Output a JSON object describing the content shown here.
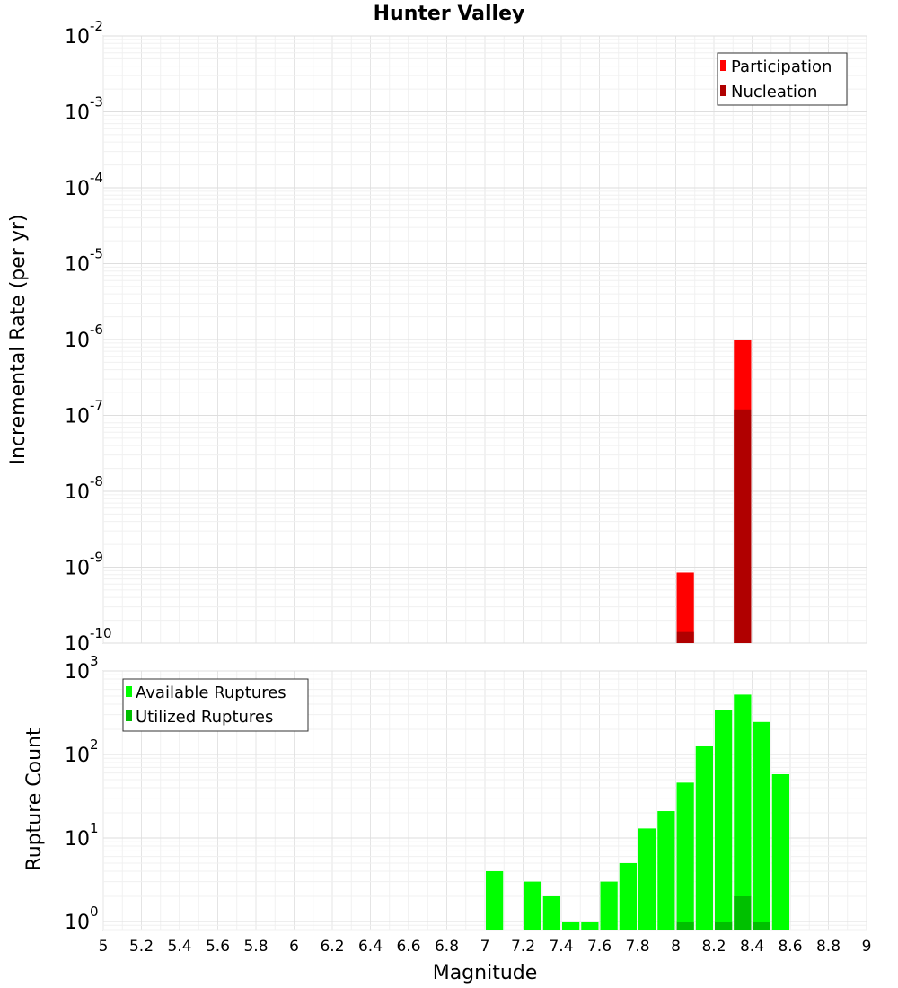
{
  "chart_data": [
    {
      "type": "bar",
      "title": "Hunter Valley",
      "xlabel": "",
      "ylabel": "Incremental Rate (per yr)",
      "yscale": "log",
      "ylim": [
        1e-10,
        0.01
      ],
      "xlim": [
        5,
        9
      ],
      "bar_width": 0.1,
      "grid": true,
      "legend_position": "top-right",
      "y_ticks": [
        {
          "base": "10",
          "exp": "-2"
        },
        {
          "base": "10",
          "exp": "-3"
        },
        {
          "base": "10",
          "exp": "-4"
        },
        {
          "base": "10",
          "exp": "-5"
        },
        {
          "base": "10",
          "exp": "-6"
        },
        {
          "base": "10",
          "exp": "-7"
        },
        {
          "base": "10",
          "exp": "-8"
        },
        {
          "base": "10",
          "exp": "-9"
        },
        {
          "base": "10",
          "exp": "-10"
        }
      ],
      "series": [
        {
          "name": "Participation",
          "color": "#ff0000",
          "points": [
            {
              "x": 8.05,
              "y": 8.5e-10
            },
            {
              "x": 8.35,
              "y": 1e-06
            }
          ]
        },
        {
          "name": "Nucleation",
          "color": "#b00000",
          "points": [
            {
              "x": 8.05,
              "y": 1.4e-10
            },
            {
              "x": 8.35,
              "y": 1.2e-07
            }
          ]
        }
      ]
    },
    {
      "type": "bar",
      "title": "",
      "xlabel": "Magnitude",
      "ylabel": "Rupture Count",
      "yscale": "log",
      "ylim": [
        0.8,
        1000
      ],
      "xlim": [
        5,
        9
      ],
      "bar_width": 0.1,
      "grid": true,
      "legend_position": "top-left",
      "x_ticks": [
        "5",
        "5.2",
        "5.4",
        "5.6",
        "5.8",
        "6",
        "6.2",
        "6.4",
        "6.6",
        "6.8",
        "7",
        "7.2",
        "7.4",
        "7.6",
        "7.8",
        "8",
        "8.2",
        "8.4",
        "8.6",
        "8.8",
        "9"
      ],
      "y_ticks": [
        {
          "base": "10",
          "exp": "3"
        },
        {
          "base": "10",
          "exp": "2"
        },
        {
          "base": "10",
          "exp": "1"
        },
        {
          "base": "10",
          "exp": "0"
        }
      ],
      "series": [
        {
          "name": "Available Ruptures",
          "color": "#00ff00",
          "points": [
            {
              "x": 7.05,
              "y": 4
            },
            {
              "x": 7.25,
              "y": 3
            },
            {
              "x": 7.35,
              "y": 2
            },
            {
              "x": 7.45,
              "y": 1
            },
            {
              "x": 7.55,
              "y": 1
            },
            {
              "x": 7.65,
              "y": 3
            },
            {
              "x": 7.75,
              "y": 5
            },
            {
              "x": 7.85,
              "y": 13
            },
            {
              "x": 7.95,
              "y": 21
            },
            {
              "x": 8.05,
              "y": 46
            },
            {
              "x": 8.15,
              "y": 125
            },
            {
              "x": 8.25,
              "y": 340
            },
            {
              "x": 8.35,
              "y": 520
            },
            {
              "x": 8.45,
              "y": 245
            },
            {
              "x": 8.55,
              "y": 58
            }
          ]
        },
        {
          "name": "Utilized Ruptures",
          "color": "#00c000",
          "points": [
            {
              "x": 8.05,
              "y": 1
            },
            {
              "x": 8.25,
              "y": 1
            },
            {
              "x": 8.35,
              "y": 2
            },
            {
              "x": 8.45,
              "y": 1
            }
          ]
        }
      ]
    }
  ]
}
